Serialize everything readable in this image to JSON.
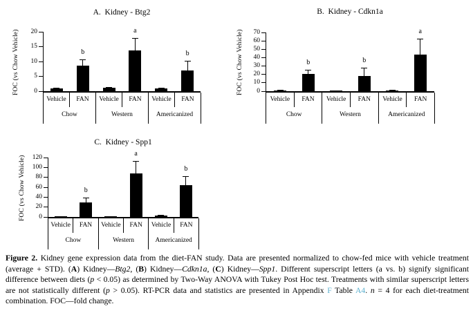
{
  "colors": {
    "bar": "#000000",
    "axis": "#000000",
    "text": "#000000",
    "link": "#5EB1CF"
  },
  "chart_data": [
    {
      "type": "bar",
      "title": "A.  Kidney - Btg2",
      "ylabel": "FOC (vs Chow Vehicle)",
      "ylim": [
        0,
        20
      ],
      "ytick_step": 5,
      "grid": false,
      "legend": "none",
      "categories": [
        "Chow-Vehicle",
        "Chow-FAN",
        "Western-Vehicle",
        "Western-FAN",
        "Americanized-Vehicle",
        "Americanized-FAN"
      ],
      "group_labels": [
        "Chow",
        "Western",
        "Americanized"
      ],
      "treatment_labels": [
        "Vehicle",
        "FAN"
      ],
      "values": [
        1.0,
        8.5,
        1.2,
        13.7,
        1.0,
        7.0
      ],
      "errors_upper": [
        0.2,
        2.2,
        0.2,
        4.3,
        0.2,
        3.2
      ],
      "sig_letters": [
        "",
        "b",
        "",
        "a",
        "",
        "b"
      ]
    },
    {
      "type": "bar",
      "title": "B.  Kidney - Cdkn1a",
      "ylabel": "FOC (vs Chow Vehicle)",
      "ylim": [
        0,
        70
      ],
      "ytick_step": 10,
      "grid": false,
      "legend": "none",
      "categories": [
        "Chow-Vehicle",
        "Chow-FAN",
        "Western-Vehicle",
        "Western-FAN",
        "Americanized-Vehicle",
        "Americanized-FAN"
      ],
      "group_labels": [
        "Chow",
        "Western",
        "Americanized"
      ],
      "treatment_labels": [
        "Vehicle",
        "FAN"
      ],
      "values": [
        1.0,
        20.5,
        0.8,
        18.5,
        1.0,
        44.0
      ],
      "errors_upper": [
        0.3,
        5.0,
        0.3,
        9.5,
        0.3,
        19.0
      ],
      "sig_letters": [
        "",
        "b",
        "",
        "b",
        "",
        "a"
      ]
    },
    {
      "type": "bar",
      "title": "C.  Kidney - Spp1",
      "ylabel": "FOC (vs Chow Vehicle)",
      "ylim": [
        0,
        120
      ],
      "ytick_step": 20,
      "grid": false,
      "legend": "none",
      "categories": [
        "Chow-Vehicle",
        "Chow-FAN",
        "Western-Vehicle",
        "Western-FAN",
        "Americanized-Vehicle",
        "Americanized-FAN"
      ],
      "group_labels": [
        "Chow",
        "Western",
        "Americanized"
      ],
      "treatment_labels": [
        "Vehicle",
        "FAN"
      ],
      "values": [
        1.0,
        29.0,
        1.0,
        88.0,
        2.5,
        64.0
      ],
      "errors_upper": [
        0.5,
        10.0,
        0.5,
        25.0,
        2.0,
        19.0
      ],
      "sig_letters": [
        "",
        "b",
        "",
        "a",
        "",
        "b"
      ]
    }
  ],
  "caption": {
    "runs": [
      {
        "t": "Figure 2. ",
        "s": "bold"
      },
      {
        "t": "Kidney gene expression data from the diet-FAN study. Data are presented normalized to chow-fed mice with vehicle treatment (average + STD). (",
        "s": ""
      },
      {
        "t": "A",
        "s": "bold"
      },
      {
        "t": ") Kidney—",
        "s": ""
      },
      {
        "t": "Btg2",
        "s": "italic"
      },
      {
        "t": ", (",
        "s": ""
      },
      {
        "t": "B",
        "s": "bold"
      },
      {
        "t": ") Kidney—",
        "s": ""
      },
      {
        "t": "Cdkn1a",
        "s": "italic"
      },
      {
        "t": ", (",
        "s": ""
      },
      {
        "t": "C",
        "s": "bold"
      },
      {
        "t": ") Kidney—",
        "s": ""
      },
      {
        "t": "Spp1",
        "s": "italic"
      },
      {
        "t": ". Different superscript letters (a vs. b) signify significant difference between diets (",
        "s": ""
      },
      {
        "t": "p",
        "s": "italic"
      },
      {
        "t": " < 0.05) as determined by Two-Way ANOVA with Tukey Post Hoc test. Treatments with similar superscript letters are not statistically different (",
        "s": ""
      },
      {
        "t": "p",
        "s": "italic"
      },
      {
        "t": " > 0.05). RT-PCR data and statistics are presented in Appendix ",
        "s": ""
      },
      {
        "t": "F",
        "s": "link"
      },
      {
        "t": " Table ",
        "s": ""
      },
      {
        "t": "A4",
        "s": "link"
      },
      {
        "t": ". ",
        "s": ""
      },
      {
        "t": "n",
        "s": "italic"
      },
      {
        "t": " = 4 for each diet-treatment combination. FOC—fold change.",
        "s": ""
      }
    ]
  }
}
